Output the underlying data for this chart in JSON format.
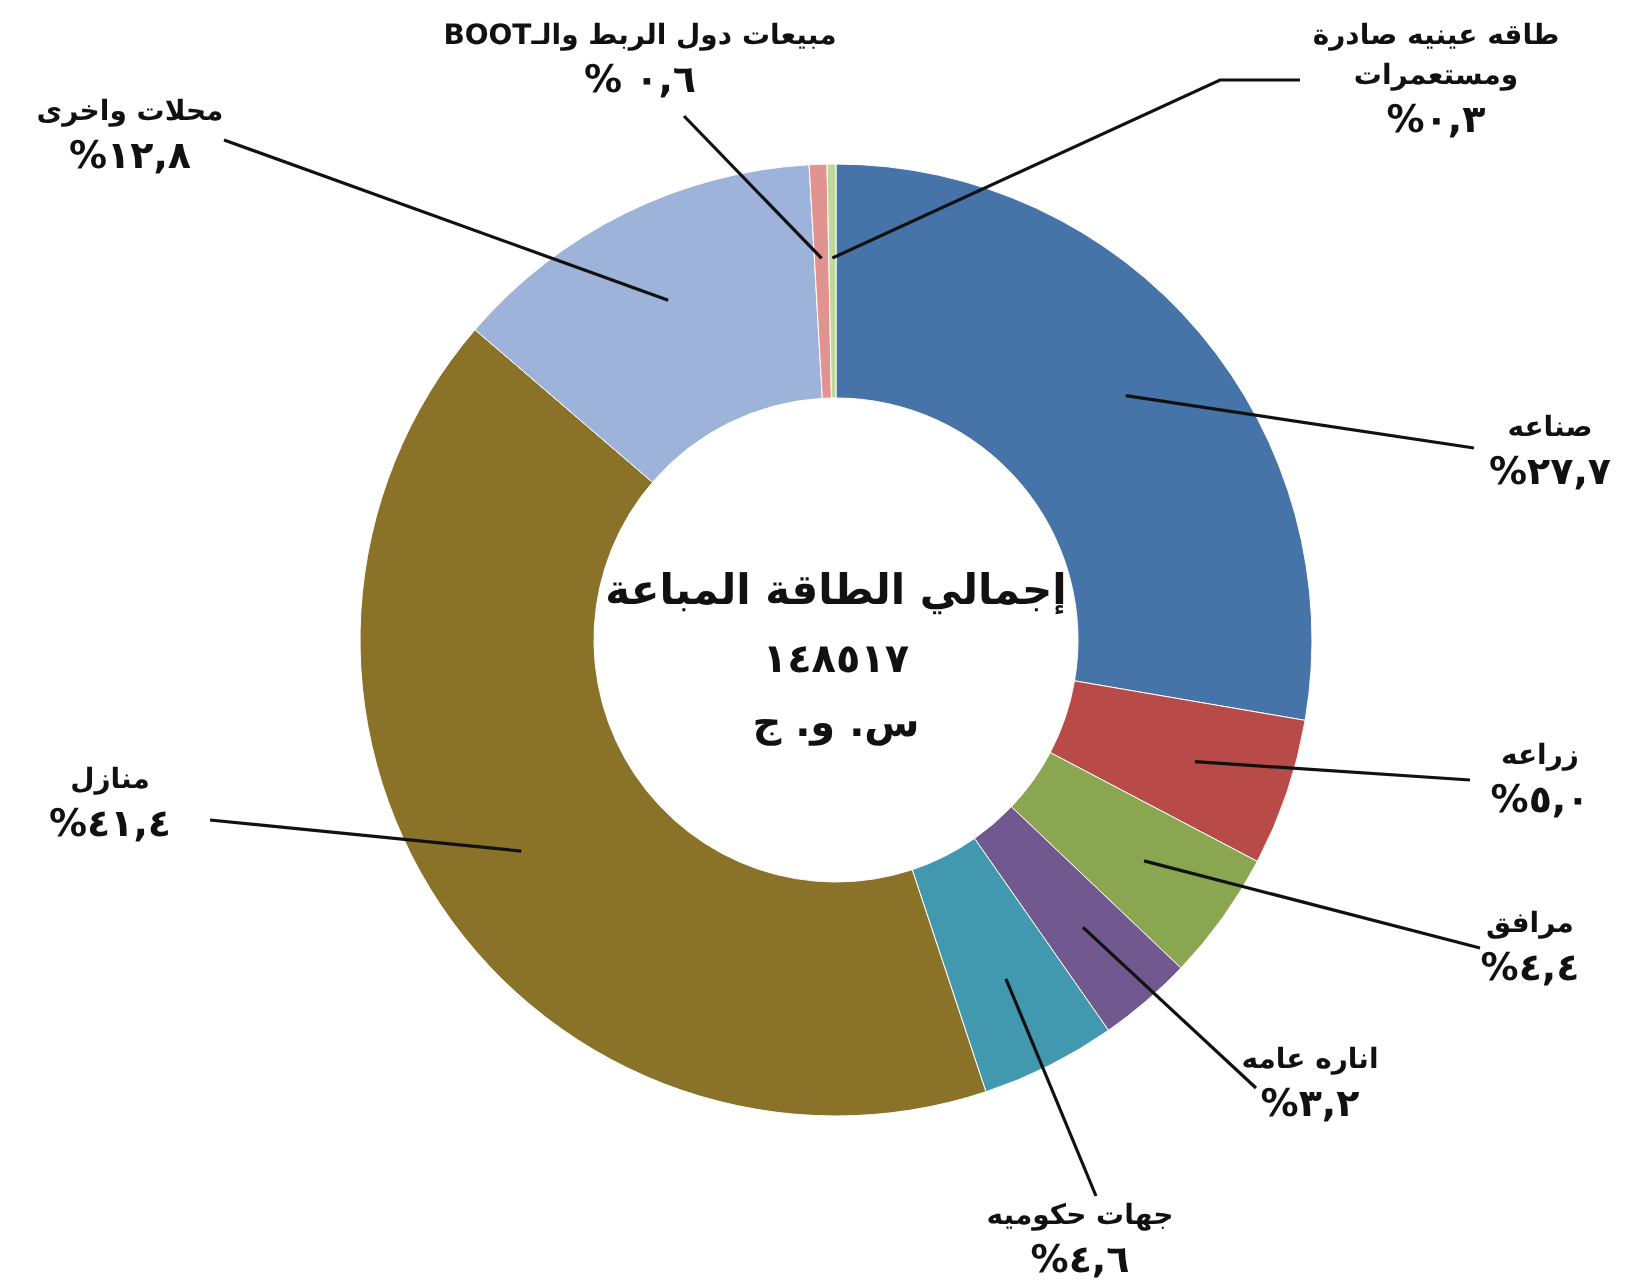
{
  "chart_data": {
    "type": "donut",
    "title": "إجمالي الطاقة المباعة",
    "annotations": [
      "١٤٨٥١٧",
      "س. و. ج"
    ],
    "categories": [
      "صناعه",
      "زراعه",
      "مرافق",
      "اناره عامه",
      "جهات حكوميه",
      "منازل",
      "محلات واخرى",
      "مبيعات دول الربط والـBOOT",
      "طاقه عينيه صادرة ومستعمرات"
    ],
    "values": [
      27.7,
      5.0,
      4.4,
      3.2,
      4.6,
      41.4,
      12.8,
      0.6,
      0.3
    ],
    "value_labels": [
      "٢٧,٧%",
      "٥,٠%",
      "٤,٤%",
      "٣,٢%",
      "٤,٦%",
      "٤١,٤%",
      "١٢,٨%",
      "٠,٦ %",
      "٠,٣%"
    ],
    "colors": [
      "#4674a9",
      "#b84a47",
      "#8ba651",
      "#71588f",
      "#4298af",
      "#8b7229",
      "#9db3d9",
      "#e0938f",
      "#bfd99a"
    ],
    "legend": false
  }
}
